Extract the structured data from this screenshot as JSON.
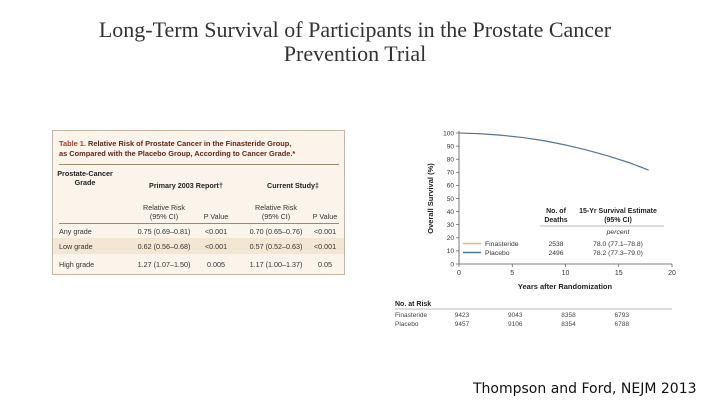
{
  "slide": {
    "title_line1": "Long-Term Survival of Participants in the Prostate Cancer",
    "title_line2": "Prevention Trial",
    "credit": "Thompson and Ford, NEJM 2013"
  },
  "table": {
    "label": "Table 1.",
    "caption_rest": "Relative Risk of Prostate Cancer in the Finasteride Group,",
    "caption_line2": "as Compared with the Placebo Group, According to Cancer Grade.*",
    "grade_header_line1": "Prostate-Cancer",
    "grade_header_line2": "Grade",
    "group1_header": "Primary 2003 Report†",
    "group2_header": "Current Study‡",
    "rr_header_line1": "Relative Risk",
    "rr_header_line2": "(95% CI)",
    "p_header": "P Value",
    "rows": [
      {
        "grade": "Any grade",
        "rr1": "0.75 (0.69–0.81)",
        "p1": "<0.001",
        "rr2": "0.70 (0.65–0.76)",
        "p2": "<0.001"
      },
      {
        "grade": "Low grade",
        "rr1": "0.62 (0.56–0.68)",
        "p1": "<0.001",
        "rr2": "0.57 (0.52–0.63)",
        "p2": "<0.001"
      },
      {
        "grade": "High grade",
        "rr1": "1.27 (1.07–1.50)",
        "p1": "0.005",
        "rr2": "1.17 (1.00–1.37)",
        "p2": "0.05"
      }
    ]
  },
  "chart_data": {
    "type": "line",
    "title": "",
    "xlabel": "Years after Randomization",
    "ylabel": "Overall Survival (%)",
    "xlim": [
      0,
      20
    ],
    "ylim": [
      0,
      100
    ],
    "xticks": [
      0,
      5,
      10,
      15,
      20
    ],
    "yticks": [
      0,
      10,
      20,
      30,
      40,
      50,
      60,
      70,
      80,
      90,
      100
    ],
    "series": [
      {
        "name": "Finasteride",
        "color": "#e8b866",
        "x": [
          0,
          2,
          4,
          6,
          8,
          10,
          12,
          14,
          16,
          17,
          17.8
        ],
        "y": [
          100,
          99.4,
          98.2,
          96.5,
          94,
          90.8,
          86.9,
          82.4,
          77.2,
          74.2,
          71.6
        ]
      },
      {
        "name": "Placebo",
        "color": "#4a74a8",
        "x": [
          0,
          2,
          4,
          6,
          8,
          10,
          12,
          14,
          16,
          17,
          17.8
        ],
        "y": [
          100,
          99.5,
          98.3,
          96.6,
          94.1,
          90.9,
          87.0,
          82.5,
          77.3,
          74.3,
          71.7
        ]
      }
    ],
    "legend_headers": {
      "deaths_line1": "No. of",
      "deaths_line2": "Deaths",
      "estimate_line1": "15-Yr Survival Estimate",
      "estimate_line2": "(95% CI)",
      "estimate_unit": "percent"
    },
    "legend_rows": [
      {
        "name": "Finasteride",
        "deaths": "2538",
        "estimate": "78.0 (77.1–78.8)"
      },
      {
        "name": "Placebo",
        "deaths": "2496",
        "estimate": "78.2 (77.3–79.0)"
      }
    ],
    "at_risk": {
      "title": "No. at Risk",
      "years": [
        0,
        5,
        10,
        15
      ],
      "rows": [
        {
          "name": "Finasteride",
          "counts": [
            "9423",
            "9043",
            "8358",
            "6793"
          ]
        },
        {
          "name": "Placebo",
          "counts": [
            "9457",
            "9106",
            "8354",
            "6788"
          ]
        }
      ]
    }
  }
}
